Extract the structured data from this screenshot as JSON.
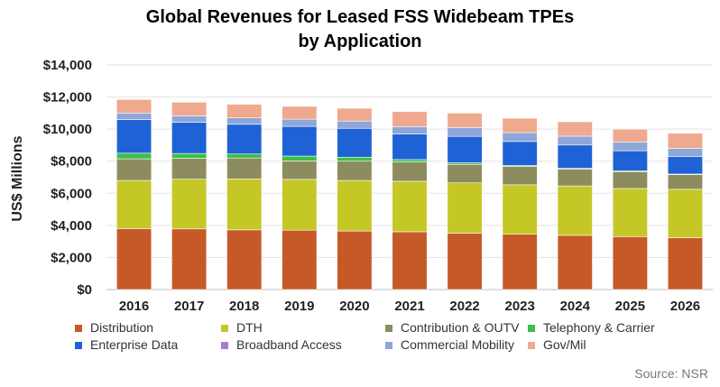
{
  "chart_data": {
    "type": "bar",
    "stacked": true,
    "title": [
      "Global Revenues for Leased FSS Widebeam TPEs",
      "by Application"
    ],
    "ylabel": "US$ Millions",
    "xlabel": "",
    "ylim": [
      0,
      14000
    ],
    "yticks": [
      "$0",
      "$2,000",
      "$4,000",
      "$6,000",
      "$8,000",
      "$10,000",
      "$12,000",
      "$14,000"
    ],
    "grid": true,
    "legend_position": "bottom",
    "categories": [
      "2016",
      "2017",
      "2018",
      "2019",
      "2020",
      "2021",
      "2022",
      "2023",
      "2024",
      "2025",
      "2026"
    ],
    "series": [
      {
        "name": "Distribution",
        "color": "#C55A28",
        "values": [
          3800,
          3780,
          3720,
          3700,
          3650,
          3600,
          3520,
          3450,
          3380,
          3300,
          3230
        ]
      },
      {
        "name": "DTH",
        "color": "#C5C727",
        "values": [
          3000,
          3100,
          3180,
          3170,
          3150,
          3150,
          3130,
          3080,
          3080,
          3000,
          3020
        ]
      },
      {
        "name": "Contribution & OUTV",
        "color": "#8C8C5E",
        "values": [
          1350,
          1300,
          1300,
          1150,
          1200,
          1200,
          1150,
          1150,
          1050,
          1050,
          920
        ]
      },
      {
        "name": "Telephony & Carrier",
        "color": "#3CBF4B",
        "values": [
          350,
          300,
          250,
          300,
          250,
          150,
          100,
          50,
          50,
          50,
          30
        ]
      },
      {
        "name": "Enterprise Data",
        "color": "#1F62D6",
        "values": [
          2100,
          1950,
          1850,
          1850,
          1800,
          1600,
          1650,
          1500,
          1450,
          1250,
          1100
        ]
      },
      {
        "name": "Broadband Access",
        "color": "#A87BD6",
        "values": [
          0,
          0,
          0,
          0,
          0,
          0,
          0,
          0,
          0,
          0,
          0
        ]
      },
      {
        "name": "Commercial Mobility",
        "color": "#8EA6D8",
        "values": [
          400,
          400,
          400,
          450,
          450,
          450,
          550,
          550,
          550,
          550,
          500
        ]
      },
      {
        "name": "Gov/Mil",
        "color": "#EFA98E",
        "values": [
          850,
          850,
          850,
          800,
          800,
          950,
          900,
          900,
          900,
          800,
          950
        ]
      }
    ],
    "source": "Source: NSR"
  }
}
